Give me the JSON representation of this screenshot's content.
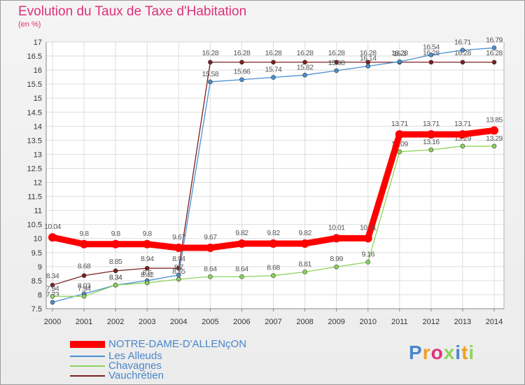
{
  "chart_data": {
    "type": "line",
    "title": "Evolution du Taux de Taxe d'Habitation",
    "subtitle": "(en %)",
    "x": [
      "2000",
      "2001",
      "2002",
      "2003",
      "2004",
      "2005",
      "2006",
      "2007",
      "2008",
      "2009",
      "2010",
      "2011",
      "2012",
      "2013",
      "2014"
    ],
    "ylim": [
      7.5,
      17
    ],
    "yticks": [
      "7.5",
      "8",
      "8.5",
      "9",
      "9.5",
      "10",
      "10.5",
      "11",
      "11.5",
      "12",
      "12.5",
      "13",
      "13.5",
      "14",
      "14.5",
      "15",
      "15.5",
      "16",
      "16.5",
      "17"
    ],
    "grid": true,
    "legend": "bottom-left",
    "series": [
      {
        "name": "NOTRE-DAME-D'ALLENçON",
        "color": "#ff0000",
        "values": [
          10.04,
          9.8,
          9.8,
          9.8,
          9.67,
          9.67,
          9.82,
          9.82,
          9.82,
          10.01,
          10.01,
          13.71,
          13.71,
          13.71,
          13.85
        ],
        "labels": [
          "10.04",
          "9.8",
          "9.8",
          "9.8",
          "9.67",
          "9.67",
          "9.82",
          "9.82",
          "9.82",
          "10.01",
          "10.01",
          "13.71",
          "13.71",
          "13.71",
          "13.85"
        ]
      },
      {
        "name": "Les Alleuds",
        "color": "#4a90d0",
        "values": [
          7.73,
          8.03,
          8.34,
          8.5,
          8.7,
          15.58,
          15.66,
          15.74,
          15.82,
          15.98,
          16.14,
          16.3,
          16.54,
          16.71,
          16.79
        ],
        "labels": [
          "7.73",
          "8.03",
          "8.34",
          "8.5",
          "8.7",
          "15.58",
          "15.66",
          "15.74",
          "15.82",
          "15.98",
          "16.14",
          "16.3",
          "16.54",
          "16.71",
          "16.79"
        ]
      },
      {
        "name": "Chavagnes",
        "color": "#8ed45a",
        "values": [
          7.94,
          7.94,
          8.34,
          8.42,
          8.55,
          8.64,
          8.64,
          8.68,
          8.81,
          8.99,
          9.16,
          13.09,
          13.16,
          13.29,
          13.29
        ],
        "labels": [
          "7.94",
          "7.94",
          "8.34",
          "8.42",
          "8.55",
          "8.64",
          "8.64",
          "8.68",
          "8.81",
          "8.99",
          "9.16",
          "13.09",
          "13.16",
          "13.29",
          "13.29"
        ]
      },
      {
        "name": "Vauchrétien",
        "color": "#7a2020",
        "values": [
          8.34,
          8.68,
          8.85,
          8.94,
          8.94,
          16.28,
          16.28,
          16.28,
          16.28,
          16.28,
          16.28,
          16.28,
          16.28,
          16.28,
          16.28
        ],
        "labels": [
          "8.34",
          "8.68",
          "8.85",
          "8.94",
          "8.94",
          "16.28",
          "16.28",
          "16.28",
          "16.28",
          "16.28",
          "16.28",
          "16.28",
          "16.28",
          "16.28",
          "16.28"
        ]
      }
    ]
  },
  "legend_items": [
    "NOTRE-DAME-D'ALLENçON",
    "Les Alleuds",
    "Chavagnes",
    "Vauchrétien"
  ],
  "brand": {
    "text": "Proxiti",
    "colors": [
      "#4a86c9",
      "#f0a020",
      "#e0307a",
      "#8ed45a",
      "#4a86c9",
      "#f0a020",
      "#8ed45a"
    ]
  }
}
